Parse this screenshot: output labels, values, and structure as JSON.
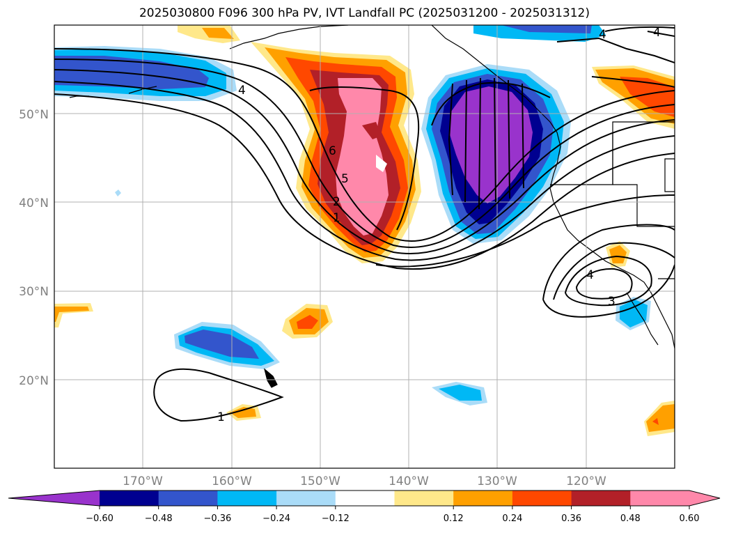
{
  "title": "2025030800 F096 300 hPa PV, IVT Landfall PC (2025031200 - 2025031312)",
  "map": {
    "lon_ticks": [
      "170°W",
      "160°W",
      "150°W",
      "140°W",
      "130°W",
      "120°W"
    ],
    "lat_ticks": [
      "50°N",
      "40°N",
      "30°N",
      "20°N"
    ],
    "grid": true,
    "contour_labels": [
      "4",
      "4",
      "4",
      "6",
      "5",
      "2",
      "1",
      "4",
      "3",
      "1"
    ]
  },
  "colorbar": {
    "orientation": "horizontal",
    "extend": "both",
    "ticks": [
      "−0.60",
      "−0.48",
      "−0.36",
      "−0.24",
      "−0.12",
      "0.12",
      "0.24",
      "0.36",
      "0.48",
      "0.60"
    ],
    "colors": [
      "#9933cc",
      "#000090",
      "#3355cc",
      "#00b8f5",
      "#aadcf8",
      "#ffffff",
      "#ffe88a",
      "#ffa000",
      "#ff4800",
      "#b22028",
      "#ff88aa",
      "#ff88aa"
    ]
  },
  "colors": {
    "neg_extreme": "#9933cc",
    "neg_060": "#000090",
    "neg_048": "#3355cc",
    "neg_036": "#00b8f5",
    "neg_024": "#aadcf8",
    "pos_012": "#ffe88a",
    "pos_024": "#ffa000",
    "pos_036": "#ff4800",
    "pos_048": "#b22028",
    "pos_060": "#ff88aa"
  }
}
